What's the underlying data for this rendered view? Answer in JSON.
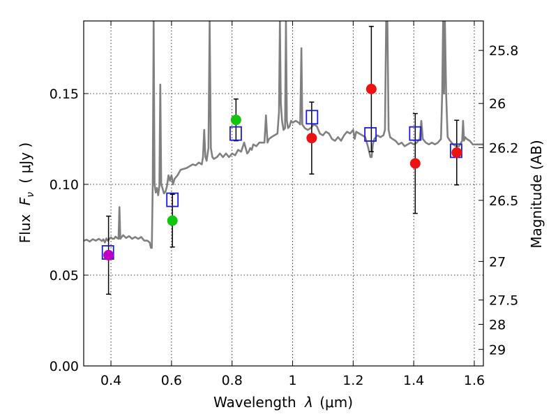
{
  "chart_data": {
    "type": "scatter",
    "xlabel": "Wavelength",
    "xlabel_symbol": "λ",
    "xlabel_unit": "(μm)",
    "ylabel": "Flux",
    "ylabel_symbol": "F",
    "ylabel_subscript": "ν",
    "ylabel_unit": "( μJy )",
    "y2label": "Magnitude (AB)",
    "xlim": [
      0.31,
      1.63
    ],
    "ylim": [
      0.0,
      0.19
    ],
    "grid": true,
    "xticks": [
      {
        "value": 0.4,
        "label": "0.4"
      },
      {
        "value": 0.6,
        "label": "0.6"
      },
      {
        "value": 0.8,
        "label": "0.8"
      },
      {
        "value": 1.0,
        "label": "1"
      },
      {
        "value": 1.2,
        "label": "1.2"
      },
      {
        "value": 1.4,
        "label": "1.4"
      },
      {
        "value": 1.6,
        "label": "1.6"
      }
    ],
    "yticks": [
      {
        "value": 0.0,
        "label": "0.00"
      },
      {
        "value": 0.05,
        "label": "0.05"
      },
      {
        "value": 0.1,
        "label": "0.10"
      },
      {
        "value": 0.15,
        "label": "0.15"
      }
    ],
    "magnitude_ticks": [
      {
        "mag": 25.8,
        "label": "25.8"
      },
      {
        "mag": 26.0,
        "label": "26"
      },
      {
        "mag": 26.2,
        "label": "26.2"
      },
      {
        "mag": 26.5,
        "label": "26.5"
      },
      {
        "mag": 27.0,
        "label": "27"
      },
      {
        "mag": 27.5,
        "label": "27.5"
      },
      {
        "mag": 28.0,
        "label": "28"
      },
      {
        "mag": 29.0,
        "label": "29"
      }
    ],
    "colors": {
      "observed_magenta": "#c000c0",
      "observed_green": "#11c511",
      "observed_red": "#ee1111",
      "model_box": "#1a1ad8",
      "spectrum": "#808080",
      "errorbar": "#000000"
    },
    "observed_points": [
      {
        "x": 0.392,
        "y": 0.061,
        "err": 0.0215,
        "color": "observed_magenta"
      },
      {
        "x": 0.603,
        "y": 0.08,
        "err": 0.0145,
        "color": "observed_green"
      },
      {
        "x": 0.813,
        "y": 0.1355,
        "err": 0.0115,
        "color": "observed_green"
      },
      {
        "x": 1.063,
        "y": 0.1255,
        "err": 0.0198,
        "color": "observed_red"
      },
      {
        "x": 1.26,
        "y": 0.1525,
        "err": 0.0345,
        "color": "observed_red"
      },
      {
        "x": 1.405,
        "y": 0.1115,
        "err": 0.0275,
        "color": "observed_red"
      },
      {
        "x": 1.542,
        "y": 0.1175,
        "err": 0.0178,
        "color": "observed_red"
      }
    ],
    "model_points": [
      {
        "x": 0.39,
        "y": 0.0625
      },
      {
        "x": 0.603,
        "y": 0.0915
      },
      {
        "x": 0.812,
        "y": 0.128
      },
      {
        "x": 1.064,
        "y": 0.137
      },
      {
        "x": 1.257,
        "y": 0.1275
      },
      {
        "x": 1.405,
        "y": 0.128
      },
      {
        "x": 1.54,
        "y": 0.1185
      }
    ],
    "spectrum": [
      [
        0.31,
        0.069
      ],
      [
        0.32,
        0.0695
      ],
      [
        0.33,
        0.0685
      ],
      [
        0.34,
        0.0698
      ],
      [
        0.35,
        0.069
      ],
      [
        0.36,
        0.07
      ],
      [
        0.37,
        0.0688
      ],
      [
        0.375,
        0.0697
      ],
      [
        0.38,
        0.068
      ],
      [
        0.385,
        0.0702
      ],
      [
        0.39,
        0.069
      ],
      [
        0.395,
        0.07
      ],
      [
        0.4,
        0.0708
      ],
      [
        0.405,
        0.07
      ],
      [
        0.41,
        0.07
      ],
      [
        0.415,
        0.0712
      ],
      [
        0.42,
        0.0705
      ],
      [
        0.425,
        0.07
      ],
      [
        0.428,
        0.0875
      ],
      [
        0.431,
        0.07
      ],
      [
        0.44,
        0.072
      ],
      [
        0.45,
        0.0705
      ],
      [
        0.46,
        0.0715
      ],
      [
        0.47,
        0.07
      ],
      [
        0.48,
        0.071
      ],
      [
        0.49,
        0.07
      ],
      [
        0.5,
        0.071
      ],
      [
        0.51,
        0.069
      ],
      [
        0.52,
        0.069
      ],
      [
        0.528,
        0.068
      ],
      [
        0.532,
        0.065
      ],
      [
        0.535,
        0.065
      ],
      [
        0.538,
        0.1
      ],
      [
        0.541,
        0.19
      ],
      [
        0.544,
        0.1
      ],
      [
        0.548,
        0.0955
      ],
      [
        0.552,
        0.098
      ],
      [
        0.556,
        0.094
      ],
      [
        0.56,
        0.099
      ],
      [
        0.563,
        0.155
      ],
      [
        0.566,
        0.1
      ],
      [
        0.57,
        0.098
      ],
      [
        0.575,
        0.095
      ],
      [
        0.58,
        0.096
      ],
      [
        0.585,
        0.099
      ],
      [
        0.59,
        0.105
      ],
      [
        0.595,
        0.102
      ],
      [
        0.6,
        0.105
      ],
      [
        0.605,
        0.1
      ],
      [
        0.61,
        0.103
      ],
      [
        0.62,
        0.105
      ],
      [
        0.63,
        0.108
      ],
      [
        0.64,
        0.1085
      ],
      [
        0.65,
        0.109
      ],
      [
        0.66,
        0.11
      ],
      [
        0.67,
        0.111
      ],
      [
        0.68,
        0.1105
      ],
      [
        0.69,
        0.112
      ],
      [
        0.7,
        0.111
      ],
      [
        0.704,
        0.115
      ],
      [
        0.708,
        0.13
      ],
      [
        0.712,
        0.115
      ],
      [
        0.716,
        0.113
      ],
      [
        0.722,
        0.12
      ],
      [
        0.726,
        0.19
      ],
      [
        0.73,
        0.12
      ],
      [
        0.735,
        0.115
      ],
      [
        0.74,
        0.114
      ],
      [
        0.75,
        0.115
      ],
      [
        0.76,
        0.117
      ],
      [
        0.77,
        0.115
      ],
      [
        0.78,
        0.117
      ],
      [
        0.79,
        0.115
      ],
      [
        0.8,
        0.117
      ],
      [
        0.81,
        0.116
      ],
      [
        0.82,
        0.119
      ],
      [
        0.83,
        0.118
      ],
      [
        0.84,
        0.123
      ],
      [
        0.845,
        0.12
      ],
      [
        0.85,
        0.117
      ],
      [
        0.855,
        0.118
      ],
      [
        0.86,
        0.12
      ],
      [
        0.865,
        0.119
      ],
      [
        0.87,
        0.122
      ],
      [
        0.88,
        0.121
      ],
      [
        0.89,
        0.123
      ],
      [
        0.9,
        0.123
      ],
      [
        0.907,
        0.123
      ],
      [
        0.912,
        0.138
      ],
      [
        0.917,
        0.123
      ],
      [
        0.922,
        0.125
      ],
      [
        0.93,
        0.126
      ],
      [
        0.94,
        0.127
      ],
      [
        0.95,
        0.128
      ],
      [
        0.955,
        0.14
      ],
      [
        0.958,
        0.19
      ],
      [
        0.961,
        0.145
      ],
      [
        0.965,
        0.135
      ],
      [
        0.97,
        0.13
      ],
      [
        0.975,
        0.131
      ],
      [
        0.978,
        0.19
      ],
      [
        0.981,
        0.135
      ],
      [
        0.985,
        0.131
      ],
      [
        0.99,
        0.132
      ],
      [
        0.995,
        0.135
      ],
      [
        1.0,
        0.134
      ],
      [
        1.01,
        0.135
      ],
      [
        1.02,
        0.134
      ],
      [
        1.025,
        0.133
      ],
      [
        1.029,
        0.175
      ],
      [
        1.032,
        0.133
      ],
      [
        1.04,
        0.131
      ],
      [
        1.05,
        0.13
      ],
      [
        1.06,
        0.131
      ],
      [
        1.07,
        0.133
      ],
      [
        1.08,
        0.132
      ],
      [
        1.09,
        0.128
      ],
      [
        1.1,
        0.127
      ],
      [
        1.11,
        0.129
      ],
      [
        1.12,
        0.128
      ],
      [
        1.13,
        0.125
      ],
      [
        1.14,
        0.124
      ],
      [
        1.15,
        0.126
      ],
      [
        1.16,
        0.124
      ],
      [
        1.17,
        0.127
      ],
      [
        1.18,
        0.129
      ],
      [
        1.19,
        0.128
      ],
      [
        1.2,
        0.13
      ],
      [
        1.205,
        0.125
      ],
      [
        1.21,
        0.129
      ],
      [
        1.22,
        0.128
      ],
      [
        1.23,
        0.127
      ],
      [
        1.24,
        0.126
      ],
      [
        1.25,
        0.12
      ],
      [
        1.257,
        0.115
      ],
      [
        1.261,
        0.115
      ],
      [
        1.265,
        0.122
      ],
      [
        1.27,
        0.125
      ],
      [
        1.28,
        0.127
      ],
      [
        1.29,
        0.126
      ],
      [
        1.3,
        0.127
      ],
      [
        1.305,
        0.13
      ],
      [
        1.309,
        0.19
      ],
      [
        1.313,
        0.19
      ],
      [
        1.317,
        0.13
      ],
      [
        1.322,
        0.126
      ],
      [
        1.33,
        0.125
      ],
      [
        1.34,
        0.124
      ],
      [
        1.35,
        0.122
      ],
      [
        1.36,
        0.123
      ],
      [
        1.37,
        0.121
      ],
      [
        1.38,
        0.122
      ],
      [
        1.39,
        0.123
      ],
      [
        1.4,
        0.122
      ],
      [
        1.41,
        0.123
      ],
      [
        1.42,
        0.125
      ],
      [
        1.425,
        0.135
      ],
      [
        1.43,
        0.125
      ],
      [
        1.44,
        0.123
      ],
      [
        1.45,
        0.122
      ],
      [
        1.46,
        0.123
      ],
      [
        1.47,
        0.122
      ],
      [
        1.48,
        0.123
      ],
      [
        1.49,
        0.125
      ],
      [
        1.494,
        0.15
      ],
      [
        1.497,
        0.19
      ],
      [
        1.5,
        0.15
      ],
      [
        1.503,
        0.19
      ],
      [
        1.507,
        0.15
      ],
      [
        1.512,
        0.126
      ],
      [
        1.52,
        0.124
      ],
      [
        1.53,
        0.122
      ],
      [
        1.54,
        0.121
      ],
      [
        1.55,
        0.121
      ],
      [
        1.56,
        0.124
      ],
      [
        1.563,
        0.135
      ],
      [
        1.566,
        0.124
      ],
      [
        1.57,
        0.126
      ],
      [
        1.575,
        0.125
      ],
      [
        1.585,
        0.124
      ],
      [
        1.595,
        0.122
      ],
      [
        1.605,
        0.122
      ],
      [
        1.62,
        0.122
      ],
      [
        1.63,
        0.122
      ]
    ]
  }
}
